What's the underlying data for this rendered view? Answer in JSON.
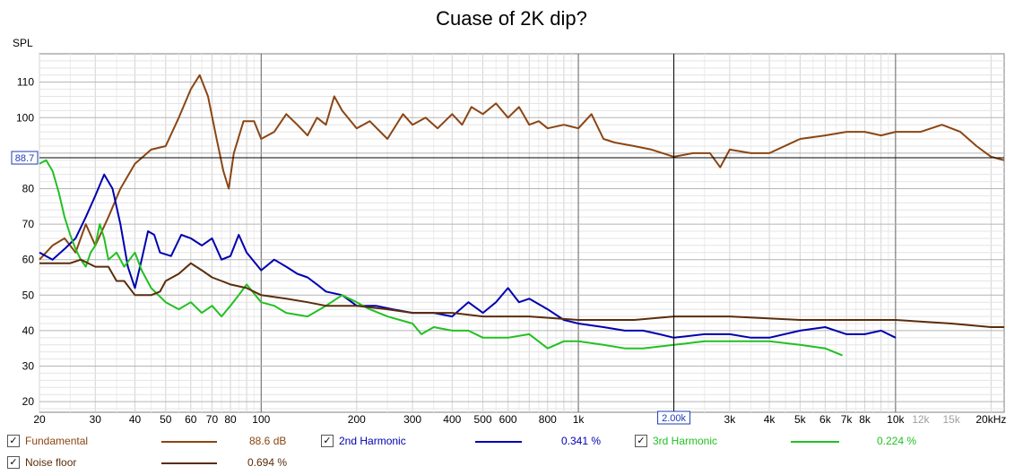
{
  "chart_data": {
    "type": "line",
    "title": "Cuase of 2K dip?",
    "ylabel": "SPL",
    "xlabel": "",
    "x_scale": "log",
    "xlim": [
      20,
      22000
    ],
    "ylim": [
      17,
      118
    ],
    "grid": true,
    "x_tick_labels": [
      {
        "x": 20,
        "label": "20"
      },
      {
        "x": 30,
        "label": "30"
      },
      {
        "x": 40,
        "label": "40"
      },
      {
        "x": 50,
        "label": "50"
      },
      {
        "x": 60,
        "label": "60"
      },
      {
        "x": 70,
        "label": "70"
      },
      {
        "x": 80,
        "label": "80"
      },
      {
        "x": 100,
        "label": "100"
      },
      {
        "x": 200,
        "label": "200"
      },
      {
        "x": 300,
        "label": "300"
      },
      {
        "x": 400,
        "label": "400"
      },
      {
        "x": 500,
        "label": "500"
      },
      {
        "x": 600,
        "label": "600"
      },
      {
        "x": 800,
        "label": "800"
      },
      {
        "x": 1000,
        "label": "1k"
      },
      {
        "x": 3000,
        "label": "3k"
      },
      {
        "x": 4000,
        "label": "4k"
      },
      {
        "x": 5000,
        "label": "5k"
      },
      {
        "x": 6000,
        "label": "6k"
      },
      {
        "x": 7000,
        "label": "7k"
      },
      {
        "x": 8000,
        "label": "8k"
      },
      {
        "x": 10000,
        "label": "10k"
      },
      {
        "x": 12000,
        "label": "12k"
      },
      {
        "x": 15000,
        "label": "15k"
      },
      {
        "x": 20000,
        "label": "20kHz"
      }
    ],
    "y_ticks": [
      20,
      30,
      40,
      50,
      60,
      70,
      80,
      100,
      110
    ],
    "cursor": {
      "x": 2000,
      "x_label": "2.00k",
      "y": 88.7,
      "y_label": "88.7"
    },
    "series": [
      {
        "name": "Fundamental",
        "color": "#8b4513",
        "legend_value": "88.6 dB",
        "points": [
          [
            20,
            60
          ],
          [
            22,
            64
          ],
          [
            24,
            66
          ],
          [
            26,
            62
          ],
          [
            28,
            70
          ],
          [
            30,
            64
          ],
          [
            33,
            72
          ],
          [
            36,
            80
          ],
          [
            40,
            87
          ],
          [
            45,
            91
          ],
          [
            50,
            92
          ],
          [
            55,
            100
          ],
          [
            60,
            108
          ],
          [
            64,
            112
          ],
          [
            68,
            106
          ],
          [
            72,
            95
          ],
          [
            76,
            85
          ],
          [
            79,
            80
          ],
          [
            82,
            90
          ],
          [
            88,
            99
          ],
          [
            95,
            99
          ],
          [
            100,
            94
          ],
          [
            110,
            96
          ],
          [
            120,
            101
          ],
          [
            130,
            98
          ],
          [
            140,
            95
          ],
          [
            150,
            100
          ],
          [
            160,
            98
          ],
          [
            170,
            106
          ],
          [
            180,
            102
          ],
          [
            200,
            97
          ],
          [
            220,
            99
          ],
          [
            250,
            94
          ],
          [
            280,
            101
          ],
          [
            300,
            98
          ],
          [
            330,
            100
          ],
          [
            360,
            97
          ],
          [
            400,
            101
          ],
          [
            430,
            98
          ],
          [
            460,
            103
          ],
          [
            500,
            101
          ],
          [
            550,
            104
          ],
          [
            600,
            100
          ],
          [
            650,
            103
          ],
          [
            700,
            98
          ],
          [
            750,
            99
          ],
          [
            800,
            97
          ],
          [
            900,
            98
          ],
          [
            1000,
            97
          ],
          [
            1100,
            101
          ],
          [
            1200,
            94
          ],
          [
            1300,
            93
          ],
          [
            1500,
            92
          ],
          [
            1700,
            91
          ],
          [
            2000,
            89
          ],
          [
            2300,
            90
          ],
          [
            2600,
            90
          ],
          [
            2800,
            86
          ],
          [
            3000,
            91
          ],
          [
            3500,
            90
          ],
          [
            4000,
            90
          ],
          [
            5000,
            94
          ],
          [
            6000,
            95
          ],
          [
            7000,
            96
          ],
          [
            8000,
            96
          ],
          [
            9000,
            95
          ],
          [
            10000,
            96
          ],
          [
            12000,
            96
          ],
          [
            14000,
            98
          ],
          [
            16000,
            96
          ],
          [
            18000,
            92
          ],
          [
            20000,
            89
          ],
          [
            22000,
            88
          ]
        ]
      },
      {
        "name": "2nd Harmonic",
        "color": "#0000b0",
        "legend_value": "0.341 %",
        "points": [
          [
            20,
            62
          ],
          [
            22,
            60
          ],
          [
            24,
            63
          ],
          [
            26,
            66
          ],
          [
            28,
            72
          ],
          [
            30,
            78
          ],
          [
            32,
            84
          ],
          [
            34,
            80
          ],
          [
            36,
            70
          ],
          [
            38,
            58
          ],
          [
            40,
            52
          ],
          [
            42,
            60
          ],
          [
            44,
            68
          ],
          [
            46,
            67
          ],
          [
            48,
            62
          ],
          [
            52,
            61
          ],
          [
            56,
            67
          ],
          [
            60,
            66
          ],
          [
            65,
            64
          ],
          [
            70,
            66
          ],
          [
            75,
            60
          ],
          [
            80,
            61
          ],
          [
            85,
            67
          ],
          [
            90,
            62
          ],
          [
            100,
            57
          ],
          [
            110,
            60
          ],
          [
            120,
            58
          ],
          [
            130,
            56
          ],
          [
            140,
            55
          ],
          [
            150,
            53
          ],
          [
            160,
            51
          ],
          [
            180,
            50
          ],
          [
            200,
            47
          ],
          [
            230,
            47
          ],
          [
            260,
            46
          ],
          [
            300,
            45
          ],
          [
            350,
            45
          ],
          [
            400,
            44
          ],
          [
            450,
            48
          ],
          [
            500,
            45
          ],
          [
            550,
            48
          ],
          [
            600,
            52
          ],
          [
            650,
            48
          ],
          [
            700,
            49
          ],
          [
            800,
            46
          ],
          [
            900,
            43
          ],
          [
            1000,
            42
          ],
          [
            1200,
            41
          ],
          [
            1400,
            40
          ],
          [
            1600,
            40
          ],
          [
            1800,
            39
          ],
          [
            2000,
            38
          ],
          [
            2500,
            39
          ],
          [
            3000,
            39
          ],
          [
            3500,
            38
          ],
          [
            4000,
            38
          ],
          [
            5000,
            40
          ],
          [
            6000,
            41
          ],
          [
            7000,
            39
          ],
          [
            8000,
            39
          ],
          [
            9000,
            40
          ],
          [
            10000,
            38
          ]
        ]
      },
      {
        "name": "3rd Harmonic",
        "color": "#22c022",
        "legend_value": "0.224 %",
        "points": [
          [
            20,
            87
          ],
          [
            21,
            88
          ],
          [
            22,
            85
          ],
          [
            23,
            79
          ],
          [
            24,
            72
          ],
          [
            25,
            67
          ],
          [
            26,
            63
          ],
          [
            27,
            60
          ],
          [
            28,
            58
          ],
          [
            29,
            62
          ],
          [
            30,
            64
          ],
          [
            31,
            70
          ],
          [
            32,
            66
          ],
          [
            33,
            60
          ],
          [
            35,
            62
          ],
          [
            37,
            58
          ],
          [
            40,
            62
          ],
          [
            42,
            57
          ],
          [
            45,
            52
          ],
          [
            50,
            48
          ],
          [
            55,
            46
          ],
          [
            60,
            48
          ],
          [
            65,
            45
          ],
          [
            70,
            47
          ],
          [
            75,
            44
          ],
          [
            80,
            47
          ],
          [
            85,
            50
          ],
          [
            90,
            53
          ],
          [
            100,
            48
          ],
          [
            110,
            47
          ],
          [
            120,
            45
          ],
          [
            140,
            44
          ],
          [
            160,
            47
          ],
          [
            180,
            50
          ],
          [
            200,
            48
          ],
          [
            220,
            46
          ],
          [
            250,
            44
          ],
          [
            300,
            42
          ],
          [
            320,
            39
          ],
          [
            350,
            41
          ],
          [
            400,
            40
          ],
          [
            450,
            40
          ],
          [
            500,
            38
          ],
          [
            600,
            38
          ],
          [
            700,
            39
          ],
          [
            800,
            35
          ],
          [
            900,
            37
          ],
          [
            1000,
            37
          ],
          [
            1200,
            36
          ],
          [
            1400,
            35
          ],
          [
            1600,
            35
          ],
          [
            2000,
            36
          ],
          [
            2500,
            37
          ],
          [
            3000,
            37
          ],
          [
            4000,
            37
          ],
          [
            5000,
            36
          ],
          [
            6000,
            35
          ],
          [
            6800,
            33
          ]
        ]
      },
      {
        "name": "Noise floor",
        "color": "#5a2d0c",
        "legend_value": "0.694 %",
        "points": [
          [
            20,
            59
          ],
          [
            25,
            59
          ],
          [
            27,
            60
          ],
          [
            30,
            58
          ],
          [
            33,
            58
          ],
          [
            35,
            54
          ],
          [
            37,
            54
          ],
          [
            40,
            50
          ],
          [
            45,
            50
          ],
          [
            48,
            51
          ],
          [
            50,
            54
          ],
          [
            55,
            56
          ],
          [
            60,
            59
          ],
          [
            65,
            57
          ],
          [
            70,
            55
          ],
          [
            75,
            54
          ],
          [
            80,
            53
          ],
          [
            90,
            52
          ],
          [
            100,
            50
          ],
          [
            120,
            49
          ],
          [
            140,
            48
          ],
          [
            160,
            47
          ],
          [
            180,
            47
          ],
          [
            200,
            47
          ],
          [
            250,
            46
          ],
          [
            300,
            45
          ],
          [
            400,
            45
          ],
          [
            500,
            44
          ],
          [
            700,
            44
          ],
          [
            1000,
            43
          ],
          [
            1500,
            43
          ],
          [
            2000,
            44
          ],
          [
            3000,
            44
          ],
          [
            5000,
            43
          ],
          [
            8000,
            43
          ],
          [
            10000,
            43
          ],
          [
            15000,
            42
          ],
          [
            20000,
            41
          ],
          [
            22000,
            41
          ]
        ]
      }
    ]
  },
  "legend": {
    "items": [
      {
        "key": "fundamental",
        "checked": "✓",
        "label": "Fundamental",
        "value": "88.6 dB",
        "color": "#8b4513"
      },
      {
        "key": "h2",
        "checked": "✓",
        "label": "2nd Harmonic",
        "value": "0.341 %",
        "color": "#0000b0"
      },
      {
        "key": "h3",
        "checked": "✓",
        "label": "3rd Harmonic",
        "value": "0.224 %",
        "color": "#22c022"
      },
      {
        "key": "noise",
        "checked": "✓",
        "label": "Noise floor",
        "value": "0.694 %",
        "color": "#5a2d0c"
      }
    ]
  }
}
